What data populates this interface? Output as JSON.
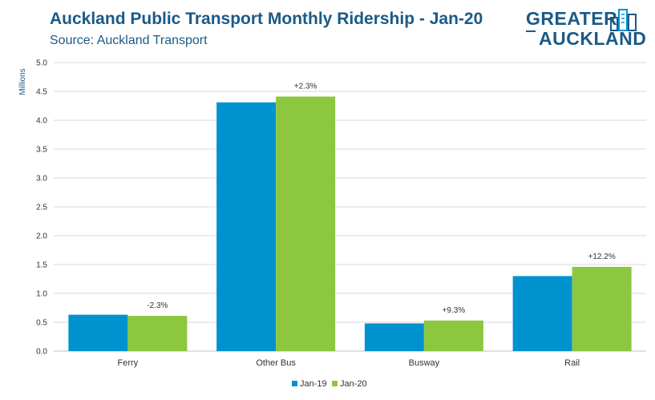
{
  "header": {
    "title": "Auckland Public Transport Monthly Ridership - Jan-20",
    "subtitle": "Source: Auckland Transport"
  },
  "logo": {
    "line1": "GREATER",
    "line2": "AUCKLAND",
    "icon": "city-buildings-icon"
  },
  "colors": {
    "jan19": "#0092cf",
    "jan20": "#8dc63f",
    "title": "#1b5a86",
    "grid": "#d9d9d9"
  },
  "chart_data": {
    "type": "bar",
    "title": "Auckland Public Transport Monthly Ridership - Jan-20",
    "subtitle": "Source: Auckland Transport",
    "xlabel": "",
    "ylabel": "Millions",
    "ylim": [
      0,
      5
    ],
    "yticks": [
      "0.0",
      "0.5",
      "1.0",
      "1.5",
      "2.0",
      "2.5",
      "3.0",
      "3.5",
      "4.0",
      "4.5",
      "5.0"
    ],
    "categories": [
      "Ferry",
      "Other Bus",
      "Busway",
      "Rail"
    ],
    "series": [
      {
        "name": "Jan-19",
        "values": [
          0.63,
          4.31,
          0.48,
          1.3
        ]
      },
      {
        "name": "Jan-20",
        "values": [
          0.61,
          4.41,
          0.53,
          1.46
        ]
      }
    ],
    "data_labels": [
      "-2.3%",
      "+2.3%",
      "+9.3%",
      "+12.2%"
    ],
    "grid": true,
    "legend": "bottom"
  }
}
